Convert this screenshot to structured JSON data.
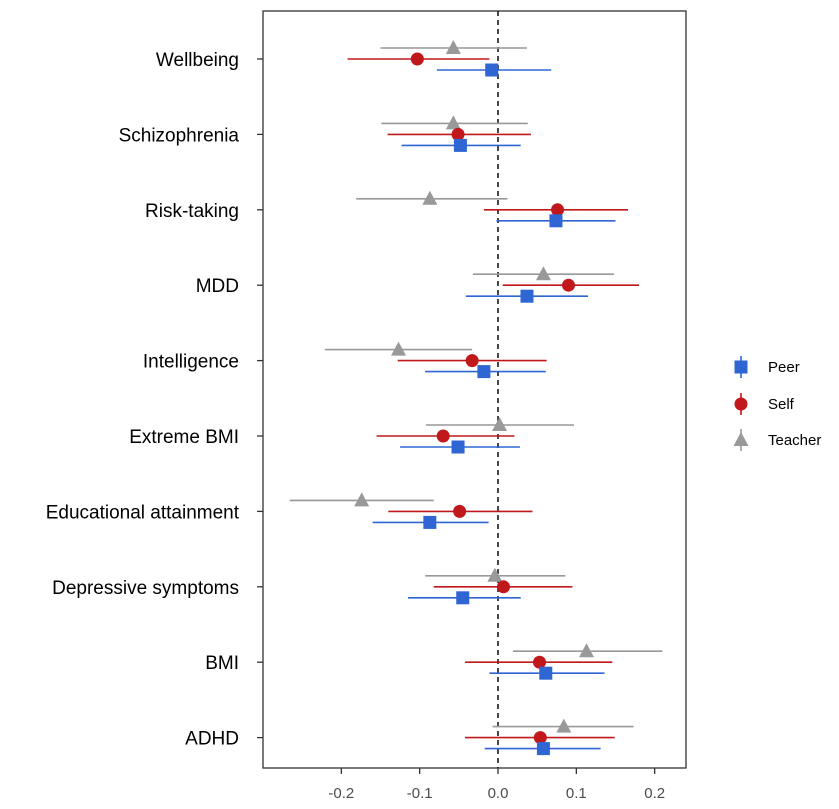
{
  "chart_data": {
    "type": "scatter",
    "subtype": "forest-plot-with-error-bars",
    "title": "",
    "xlabel": "",
    "ylabel": "",
    "categories": [
      "Wellbeing",
      "Schizophrenia",
      "Risk-taking",
      "MDD",
      "Intelligence",
      "Extreme BMI",
      "Educational attainment",
      "Depressive symptoms",
      "BMI",
      "ADHD"
    ],
    "xlim": [
      -0.3,
      0.24
    ],
    "xticks": [
      -0.2,
      -0.1,
      0.0,
      0.1,
      0.2
    ],
    "xtick_labels": [
      "-0.2",
      "-0.1",
      "0.0",
      "0.1",
      "0.2"
    ],
    "reference_line": {
      "x": 0,
      "style": "dashed"
    },
    "grid": false,
    "legend_position": "right",
    "series": [
      {
        "name": "Peer",
        "marker": "square",
        "color": "#2f66d4",
        "values": [
          -0.008,
          -0.048,
          0.074,
          0.037,
          -0.018,
          -0.051,
          -0.087,
          -0.045,
          0.061,
          0.058
        ],
        "lower": [
          -0.078,
          -0.123,
          -0.002,
          -0.041,
          -0.093,
          -0.125,
          -0.16,
          -0.115,
          -0.011,
          -0.017
        ],
        "upper": [
          0.068,
          0.029,
          0.15,
          0.115,
          0.061,
          0.028,
          -0.012,
          0.029,
          0.136,
          0.131
        ]
      },
      {
        "name": "Self",
        "marker": "circle",
        "color": "#c0181b",
        "values": [
          -0.103,
          -0.051,
          0.076,
          0.09,
          -0.033,
          -0.07,
          -0.049,
          0.007,
          0.053,
          0.054
        ],
        "lower": [
          -0.192,
          -0.141,
          -0.018,
          0.006,
          -0.128,
          -0.155,
          -0.14,
          -0.082,
          -0.042,
          -0.042
        ],
        "upper": [
          -0.011,
          0.042,
          0.166,
          0.18,
          0.062,
          0.021,
          0.044,
          0.095,
          0.146,
          0.149
        ]
      },
      {
        "name": "Teacher",
        "marker": "triangle",
        "color": "#999999",
        "values": [
          -0.057,
          -0.057,
          -0.087,
          0.058,
          -0.127,
          0.002,
          -0.174,
          -0.004,
          0.113,
          0.084
        ],
        "lower": [
          -0.15,
          -0.149,
          -0.181,
          -0.032,
          -0.221,
          -0.092,
          -0.266,
          -0.093,
          0.019,
          -0.007
        ],
        "upper": [
          0.037,
          0.038,
          0.012,
          0.148,
          -0.033,
          0.097,
          -0.082,
          0.086,
          0.21,
          0.173
        ]
      }
    ]
  }
}
